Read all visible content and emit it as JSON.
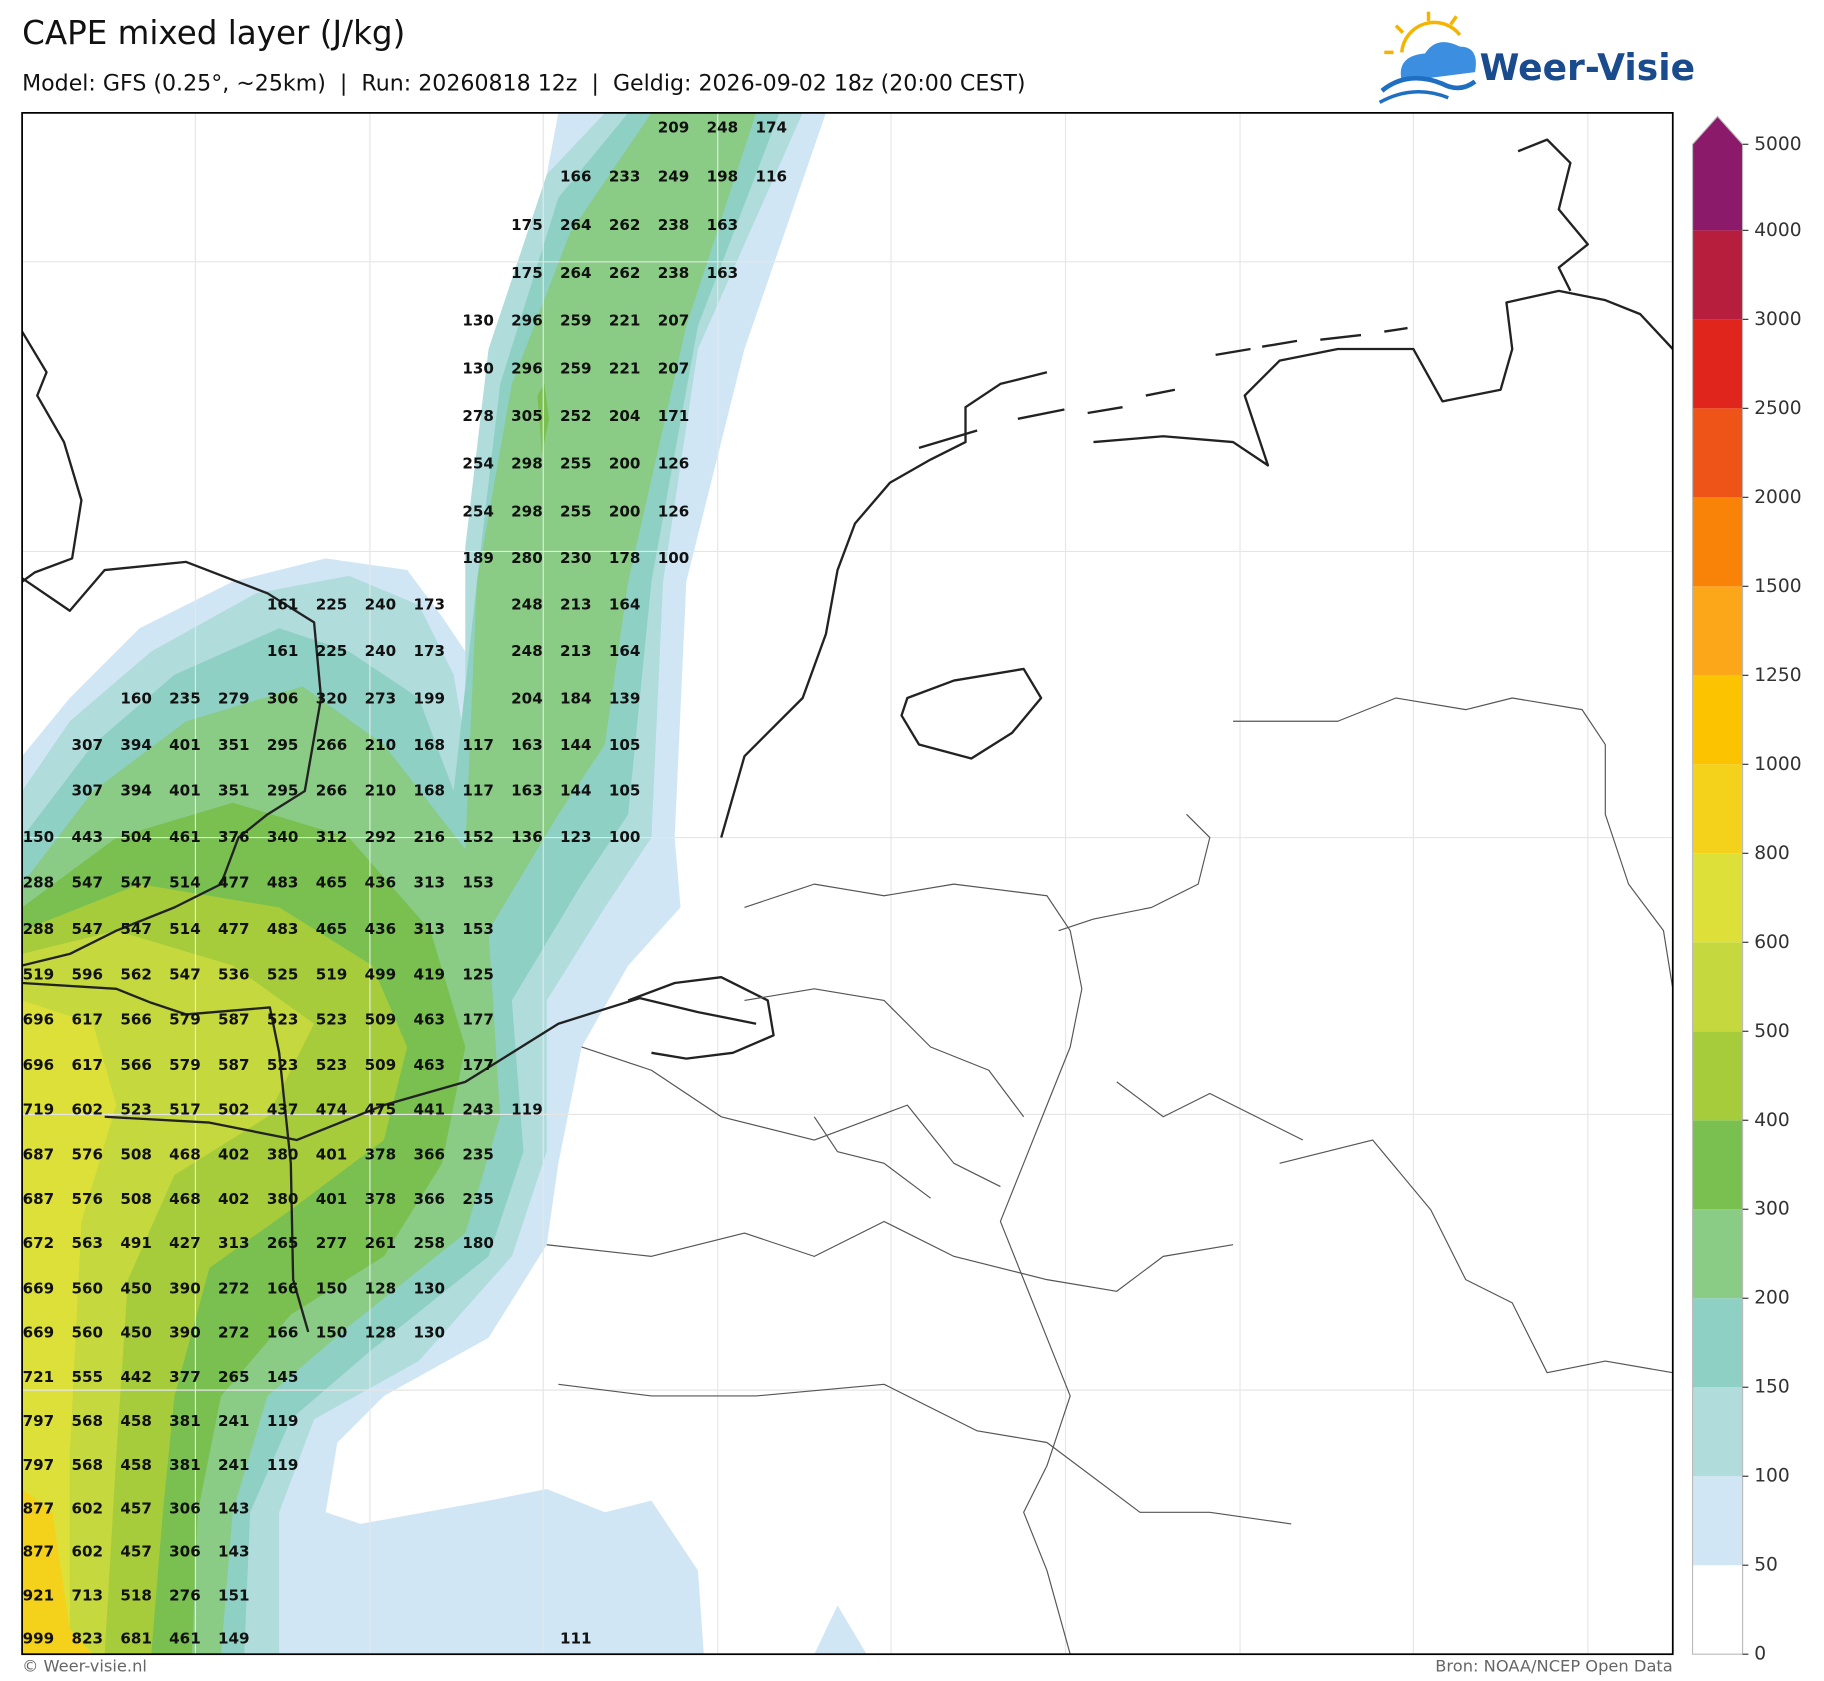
{
  "header": {
    "title": "CAPE mixed layer (J/kg)",
    "subtitle": "Model: GFS (0.25°, ~25km)  |  Run: 20260818 12z  |  Geldig: 2026-09-02 18z (20:00 CEST)",
    "logo": "Weer-Visie"
  },
  "map": {
    "value_rows": [
      [
        null,
        null,
        null,
        null,
        null,
        null,
        null,
        null,
        null,
        null,
        null,
        null,
        null,
        209,
        248,
        174
      ],
      [
        null,
        null,
        null,
        null,
        null,
        null,
        null,
        null,
        null,
        null,
        null,
        166,
        233,
        249,
        198,
        116
      ],
      [
        null,
        null,
        null,
        null,
        null,
        null,
        null,
        null,
        null,
        null,
        175,
        264,
        262,
        238,
        163,
        null
      ],
      [
        null,
        null,
        null,
        null,
        null,
        null,
        null,
        null,
        null,
        null,
        175,
        264,
        262,
        238,
        163,
        null
      ],
      [
        null,
        null,
        null,
        null,
        null,
        null,
        null,
        null,
        null,
        130,
        296,
        259,
        221,
        207,
        null,
        null
      ],
      [
        null,
        null,
        null,
        null,
        null,
        null,
        null,
        null,
        null,
        130,
        296,
        259,
        221,
        207,
        null,
        null
      ],
      [
        null,
        null,
        null,
        null,
        null,
        null,
        null,
        null,
        null,
        278,
        305,
        252,
        204,
        171,
        null,
        null
      ],
      [
        null,
        null,
        null,
        null,
        null,
        null,
        null,
        null,
        null,
        254,
        298,
        255,
        200,
        126,
        null,
        null
      ],
      [
        null,
        null,
        null,
        null,
        null,
        null,
        null,
        null,
        null,
        254,
        298,
        255,
        200,
        126,
        null,
        null
      ],
      [
        null,
        null,
        null,
        null,
        null,
        null,
        null,
        null,
        null,
        189,
        280,
        230,
        178,
        100,
        null,
        null
      ],
      [
        null,
        null,
        null,
        null,
        null,
        161,
        225,
        240,
        173,
        null,
        248,
        213,
        164,
        null,
        null,
        null
      ],
      [
        null,
        null,
        null,
        null,
        null,
        161,
        225,
        240,
        173,
        null,
        248,
        213,
        164,
        null,
        null,
        null
      ],
      [
        null,
        null,
        160,
        235,
        279,
        306,
        320,
        273,
        199,
        null,
        204,
        184,
        139,
        null,
        null,
        null
      ],
      [
        null,
        307,
        394,
        401,
        351,
        295,
        266,
        210,
        168,
        117,
        163,
        144,
        105,
        null,
        null,
        null
      ],
      [
        null,
        307,
        394,
        401,
        351,
        295,
        266,
        210,
        168,
        117,
        163,
        144,
        105,
        null,
        null,
        null
      ],
      [
        150,
        443,
        504,
        461,
        376,
        340,
        312,
        292,
        216,
        152,
        136,
        123,
        100,
        null,
        null,
        null
      ],
      [
        288,
        547,
        547,
        514,
        477,
        483,
        465,
        436,
        313,
        153,
        null,
        null,
        null,
        null,
        null,
        null
      ],
      [
        288,
        547,
        547,
        514,
        477,
        483,
        465,
        436,
        313,
        153,
        null,
        null,
        null,
        null,
        null,
        null
      ],
      [
        519,
        596,
        562,
        547,
        536,
        525,
        519,
        499,
        419,
        125,
        null,
        null,
        null,
        null,
        null,
        null
      ],
      [
        696,
        617,
        566,
        579,
        587,
        523,
        523,
        509,
        463,
        177,
        null,
        null,
        null,
        null,
        null,
        null
      ],
      [
        696,
        617,
        566,
        579,
        587,
        523,
        523,
        509,
        463,
        177,
        null,
        null,
        null,
        null,
        null,
        null
      ],
      [
        719,
        602,
        523,
        517,
        502,
        437,
        474,
        475,
        441,
        243,
        119,
        null,
        null,
        null,
        null,
        null
      ],
      [
        687,
        576,
        508,
        468,
        402,
        380,
        401,
        378,
        366,
        235,
        null,
        null,
        null,
        null,
        null,
        null
      ],
      [
        687,
        576,
        508,
        468,
        402,
        380,
        401,
        378,
        366,
        235,
        null,
        null,
        null,
        null,
        null,
        null
      ],
      [
        672,
        563,
        491,
        427,
        313,
        265,
        277,
        261,
        258,
        180,
        null,
        null,
        null,
        null,
        null,
        null
      ],
      [
        669,
        560,
        450,
        390,
        272,
        166,
        150,
        128,
        130,
        null,
        null,
        null,
        null,
        null,
        null,
        null
      ],
      [
        669,
        560,
        450,
        390,
        272,
        166,
        150,
        128,
        130,
        null,
        null,
        null,
        null,
        null,
        null,
        null
      ],
      [
        721,
        555,
        442,
        377,
        265,
        145,
        null,
        null,
        null,
        null,
        null,
        null,
        null,
        null,
        null,
        null
      ],
      [
        797,
        568,
        458,
        381,
        241,
        119,
        null,
        null,
        null,
        null,
        null,
        null,
        null,
        null,
        null,
        null
      ],
      [
        797,
        568,
        458,
        381,
        241,
        119,
        null,
        null,
        null,
        null,
        null,
        null,
        null,
        null,
        null,
        null
      ],
      [
        877,
        602,
        457,
        306,
        143,
        null,
        null,
        null,
        null,
        null,
        null,
        null,
        null,
        null,
        null,
        null
      ],
      [
        877,
        602,
        457,
        306,
        143,
        null,
        null,
        null,
        null,
        null,
        null,
        null,
        null,
        null,
        null,
        null
      ],
      [
        921,
        713,
        518,
        276,
        151,
        null,
        null,
        null,
        null,
        null,
        null,
        null,
        null,
        null,
        null,
        null
      ],
      [
        999,
        823,
        681,
        461,
        149,
        null,
        null,
        null,
        null,
        null,
        null,
        111,
        null,
        null,
        null,
        null
      ]
    ]
  },
  "colorbar": {
    "ticks": [
      0,
      50,
      100,
      150,
      200,
      300,
      400,
      500,
      600,
      800,
      1000,
      1250,
      1500,
      2000,
      2500,
      3000,
      4000,
      5000
    ],
    "colors": [
      "#ffffff",
      "#d0e6f5",
      "#b0dcdc",
      "#8fd0c4",
      "#8acb86",
      "#79c050",
      "#a6cc3c",
      "#c5d83e",
      "#dee03a",
      "#f4d21b",
      "#fcc400",
      "#fca61a",
      "#f98309",
      "#ee5417",
      "#e0251c",
      "#b71d3c",
      "#8b1a6a"
    ]
  },
  "footer": {
    "left": "© Weer-visie.nl",
    "right": "Bron: NOAA/NCEP Open Data"
  }
}
